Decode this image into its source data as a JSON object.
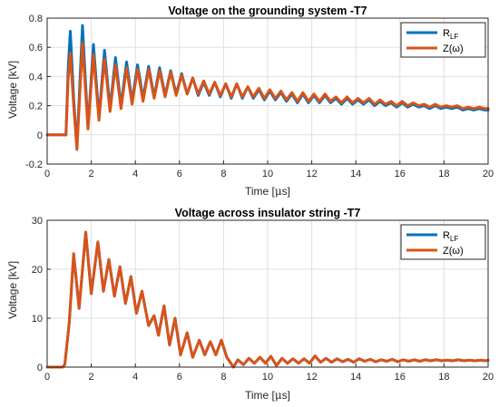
{
  "chart_data": [
    {
      "type": "line",
      "title": "Voltage on the grounding system -T7",
      "xlabel": "Time [μs]",
      "ylabel": "Voltage [kV]",
      "xlim": [
        0,
        20
      ],
      "ylim": [
        -0.2,
        0.8
      ],
      "xticks": [
        "0",
        "2",
        "4",
        "6",
        "8",
        "10",
        "12",
        "14",
        "16",
        "18",
        "20"
      ],
      "yticks": [
        "-0.2",
        "0",
        "0.2",
        "0.4",
        "0.6",
        "0.8"
      ],
      "grid": true,
      "legend_position": "top-right",
      "legend": [
        {
          "name": "R",
          "sub": "LF",
          "color": "#0072BD"
        },
        {
          "name": "Z(ω)",
          "color": "#D95319"
        }
      ],
      "series": [
        {
          "name": "R_LF",
          "color": "#0072BD",
          "x": [
            0,
            0.85,
            0.95,
            1.05,
            1.2,
            1.35,
            1.6,
            1.85,
            2.1,
            2.35,
            2.6,
            2.85,
            3.1,
            3.35,
            3.6,
            3.85,
            4.1,
            4.35,
            4.6,
            4.85,
            5.1,
            5.35,
            5.6,
            5.85,
            6.1,
            6.35,
            6.6,
            6.85,
            7.1,
            7.35,
            7.6,
            7.85,
            8.1,
            8.35,
            8.6,
            8.85,
            9.1,
            9.35,
            9.6,
            9.85,
            10.1,
            10.35,
            10.6,
            10.85,
            11.1,
            11.35,
            11.6,
            11.85,
            12.1,
            12.35,
            12.6,
            12.85,
            13.1,
            13.35,
            13.6,
            13.85,
            14.1,
            14.35,
            14.6,
            14.85,
            15.1,
            15.35,
            15.6,
            15.85,
            16.1,
            16.35,
            16.6,
            16.85,
            17.1,
            17.35,
            17.6,
            17.85,
            18.1,
            18.35,
            18.6,
            18.85,
            19.1,
            19.35,
            19.6,
            19.85,
            20
          ],
          "values": [
            0,
            0,
            0.45,
            0.71,
            0.25,
            -0.09,
            0.75,
            0.05,
            0.62,
            0.12,
            0.58,
            0.18,
            0.53,
            0.2,
            0.5,
            0.23,
            0.48,
            0.25,
            0.47,
            0.26,
            0.46,
            0.27,
            0.44,
            0.28,
            0.42,
            0.28,
            0.39,
            0.27,
            0.36,
            0.27,
            0.36,
            0.26,
            0.35,
            0.25,
            0.35,
            0.25,
            0.33,
            0.25,
            0.31,
            0.24,
            0.3,
            0.24,
            0.29,
            0.23,
            0.28,
            0.22,
            0.28,
            0.22,
            0.27,
            0.22,
            0.27,
            0.22,
            0.25,
            0.21,
            0.25,
            0.21,
            0.24,
            0.21,
            0.24,
            0.2,
            0.23,
            0.2,
            0.22,
            0.19,
            0.22,
            0.19,
            0.21,
            0.19,
            0.2,
            0.18,
            0.2,
            0.18,
            0.19,
            0.18,
            0.19,
            0.17,
            0.18,
            0.17,
            0.18,
            0.17,
            0.17
          ]
        },
        {
          "name": "Z(ω)",
          "color": "#D95319",
          "x": [
            0,
            0.85,
            0.95,
            1.05,
            1.2,
            1.35,
            1.6,
            1.85,
            2.1,
            2.35,
            2.6,
            2.85,
            3.1,
            3.35,
            3.6,
            3.85,
            4.1,
            4.35,
            4.6,
            4.85,
            5.1,
            5.35,
            5.6,
            5.85,
            6.1,
            6.35,
            6.6,
            6.85,
            7.1,
            7.35,
            7.6,
            7.85,
            8.1,
            8.35,
            8.6,
            8.85,
            9.1,
            9.35,
            9.6,
            9.85,
            10.1,
            10.35,
            10.6,
            10.85,
            11.1,
            11.35,
            11.6,
            11.85,
            12.1,
            12.35,
            12.6,
            12.85,
            13.1,
            13.35,
            13.6,
            13.85,
            14.1,
            14.35,
            14.6,
            14.85,
            15.1,
            15.35,
            15.6,
            15.85,
            16.1,
            16.35,
            16.6,
            16.85,
            17.1,
            17.35,
            17.6,
            17.85,
            18.1,
            18.35,
            18.6,
            18.85,
            19.1,
            19.35,
            19.6,
            19.85,
            20
          ],
          "values": [
            0,
            0,
            0.38,
            0.56,
            0.2,
            -0.1,
            0.63,
            0.04,
            0.55,
            0.1,
            0.52,
            0.16,
            0.48,
            0.18,
            0.46,
            0.21,
            0.45,
            0.23,
            0.45,
            0.25,
            0.44,
            0.26,
            0.43,
            0.27,
            0.41,
            0.28,
            0.39,
            0.28,
            0.37,
            0.28,
            0.36,
            0.27,
            0.35,
            0.26,
            0.35,
            0.26,
            0.33,
            0.26,
            0.32,
            0.25,
            0.31,
            0.25,
            0.3,
            0.24,
            0.29,
            0.23,
            0.29,
            0.23,
            0.28,
            0.23,
            0.28,
            0.23,
            0.26,
            0.22,
            0.26,
            0.22,
            0.25,
            0.22,
            0.25,
            0.21,
            0.24,
            0.21,
            0.23,
            0.2,
            0.23,
            0.2,
            0.22,
            0.2,
            0.21,
            0.19,
            0.21,
            0.19,
            0.2,
            0.19,
            0.2,
            0.18,
            0.19,
            0.18,
            0.19,
            0.18,
            0.18
          ]
        }
      ]
    },
    {
      "type": "line",
      "title": "Voltage across insulator string -T7",
      "xlabel": "Time [μs]",
      "ylabel": "Voltage [kV]",
      "xlim": [
        0,
        20
      ],
      "ylim": [
        0,
        30
      ],
      "xticks": [
        "0",
        "2",
        "4",
        "6",
        "8",
        "10",
        "12",
        "14",
        "16",
        "18",
        "20"
      ],
      "yticks": [
        "0",
        "10",
        "20",
        "30"
      ],
      "grid": true,
      "legend_position": "top-right",
      "legend": [
        {
          "name": "R",
          "sub": "LF",
          "color": "#0072BD"
        },
        {
          "name": "Z(ω)",
          "color": "#D95319"
        }
      ],
      "series": [
        {
          "name": "R_LF",
          "color": "#0072BD",
          "x": [
            0,
            0.7,
            0.8,
            1.0,
            1.2,
            1.45,
            1.75,
            2.0,
            2.3,
            2.55,
            2.8,
            3.05,
            3.3,
            3.55,
            3.8,
            4.05,
            4.3,
            4.6,
            4.85,
            5.05,
            5.3,
            5.55,
            5.8,
            6.05,
            6.35,
            6.6,
            6.9,
            7.15,
            7.4,
            7.65,
            7.9,
            8.15,
            8.45,
            8.65,
            8.9,
            9.15,
            9.4,
            9.65,
            9.9,
            10.15,
            10.4,
            10.65,
            10.9,
            11.15,
            11.4,
            11.65,
            11.9,
            12.15,
            12.4,
            12.65,
            12.9,
            13.15,
            13.4,
            13.65,
            13.9,
            14.15,
            14.4,
            14.65,
            14.9,
            15.15,
            15.4,
            15.65,
            15.9,
            16.15,
            16.4,
            16.65,
            16.9,
            17.15,
            17.4,
            17.65,
            17.9,
            18.15,
            18.4,
            18.65,
            18.9,
            19.15,
            19.4,
            19.65,
            19.9,
            20
          ],
          "values": [
            0,
            0,
            0.5,
            9,
            23,
            12,
            27.5,
            15,
            25.5,
            15.5,
            22,
            14.5,
            20.5,
            13,
            18.5,
            11,
            15.5,
            8.5,
            10.5,
            6.5,
            12.5,
            4.5,
            10,
            2.5,
            7,
            2,
            5.5,
            2.5,
            5.2,
            2.5,
            5.5,
            2,
            0,
            1.5,
            0.5,
            1.8,
            0.8,
            2,
            0.8,
            2.2,
            0.3,
            1.8,
            0.8,
            1.7,
            0.8,
            1.7,
            0.8,
            2.3,
            1,
            1.8,
            1,
            1.7,
            1.1,
            1.6,
            1,
            1.7,
            1.2,
            1.6,
            1.1,
            1.5,
            1.2,
            1.6,
            1.1,
            1.5,
            1.2,
            1.5,
            1.2,
            1.5,
            1.3,
            1.5,
            1.3,
            1.4,
            1.3,
            1.5,
            1.3,
            1.4,
            1.3,
            1.4,
            1.3,
            1.4
          ]
        },
        {
          "name": "Z(ω)",
          "color": "#D95319",
          "x": [
            0,
            0.7,
            0.8,
            1.0,
            1.2,
            1.45,
            1.75,
            2.0,
            2.3,
            2.55,
            2.8,
            3.05,
            3.3,
            3.55,
            3.8,
            4.05,
            4.3,
            4.6,
            4.85,
            5.05,
            5.3,
            5.55,
            5.8,
            6.05,
            6.35,
            6.6,
            6.9,
            7.15,
            7.4,
            7.65,
            7.9,
            8.15,
            8.45,
            8.65,
            8.9,
            9.15,
            9.4,
            9.65,
            9.9,
            10.15,
            10.4,
            10.65,
            10.9,
            11.15,
            11.4,
            11.65,
            11.9,
            12.15,
            12.4,
            12.65,
            12.9,
            13.15,
            13.4,
            13.65,
            13.9,
            14.15,
            14.4,
            14.65,
            14.9,
            15.15,
            15.4,
            15.65,
            15.9,
            16.15,
            16.4,
            16.65,
            16.9,
            17.15,
            17.4,
            17.65,
            17.9,
            18.15,
            18.4,
            18.65,
            18.9,
            19.15,
            19.4,
            19.65,
            19.9,
            20
          ],
          "values": [
            0,
            0,
            0.5,
            9,
            23.2,
            12,
            27.6,
            15,
            25.6,
            15.5,
            22,
            14.5,
            20.5,
            13,
            18.5,
            11,
            15.5,
            8.5,
            10.5,
            6.5,
            12.5,
            4.5,
            10,
            2.5,
            7,
            2,
            5.5,
            2.5,
            5.2,
            2.5,
            5.5,
            2,
            0,
            1.5,
            0.5,
            1.8,
            0.8,
            2,
            0.8,
            2.2,
            0.3,
            1.8,
            0.8,
            1.7,
            0.8,
            1.7,
            0.8,
            2.3,
            1,
            1.8,
            1,
            1.7,
            1.1,
            1.6,
            1,
            1.7,
            1.2,
            1.6,
            1.1,
            1.5,
            1.2,
            1.6,
            1.1,
            1.5,
            1.2,
            1.5,
            1.2,
            1.5,
            1.3,
            1.5,
            1.3,
            1.4,
            1.3,
            1.5,
            1.3,
            1.4,
            1.3,
            1.4,
            1.3,
            1.4
          ]
        }
      ]
    }
  ]
}
